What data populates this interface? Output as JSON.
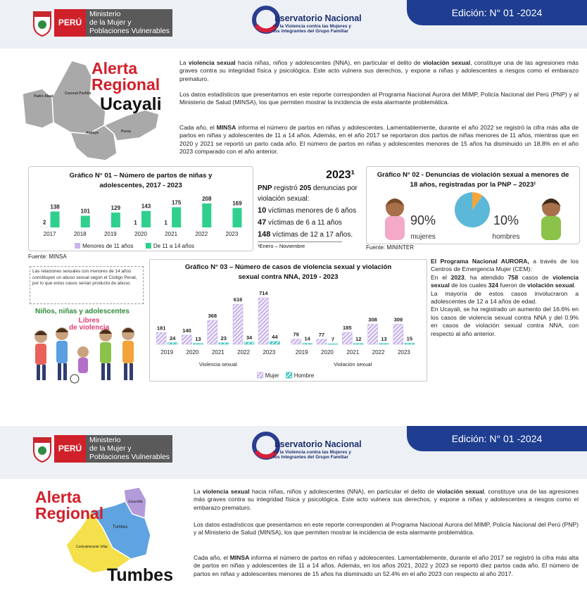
{
  "page1": {
    "header": {
      "badge": "PERÚ",
      "ministry": [
        "Ministerio",
        "de la Mujer y",
        "Poblaciones Vulnerables"
      ],
      "observatory": "bservatorio Nacional",
      "observatory_sub": [
        "de la Violencia contra las Mujeres y",
        "los Integrantes del Grupo Familiar"
      ],
      "edition": "Edición: N° 01 -2024"
    },
    "map": {
      "title": [
        "Alerta",
        "Regional"
      ],
      "region": "Ucayali",
      "provinces": [
        "Padre Abad",
        "Coronel Portillo",
        "Atalaya",
        "Purus"
      ]
    },
    "intro": [
      [
        "La ",
        "violencia sexual",
        " hacia niñas, niños y adolescentes (NNA), en particular el delito de ",
        "violación sexual",
        ", constituye una de las agresiones más graves contra su integridad física y psicológica. Este acto vulnera sus derechos, y expone a niñas y adolescentes a riesgos como el embarazo prematuro."
      ],
      [
        "Los datos estadísticos que presentamos en este reporte corresponden al Programa Nacional Aurora del MIMP, Policía Nacional del Perú (PNP) y al Ministerio de Salud (MINSA), los que permiten mostrar la incidencia de esta alarmante problemática."
      ],
      [
        "Cada año, el ",
        "MINSA",
        " informa el número de partos en niñas y adolescentes. Lamentablemente, durante el año 2022 se registró la cifra más alta de partos en niñas y adolescentes de 11 a 14 años. Además, en el año 2017 se reportaron dos partos de niñas menores de 11 años, mientras que en 2020 y 2021 se reportó un parto cada año. El número de partos en niñas y adolescentes menores de 15 años ha disminuido un 18.8% en el año 2023 comparado con el año anterior."
      ]
    ],
    "chart1": {
      "type": "bar",
      "title": "Gráfico N° 01 – Número de partos de niñas y adolescentes, 2017 - 2023",
      "categories": [
        "2017",
        "2018",
        "2019",
        "2020",
        "2021",
        "2022",
        "2023"
      ],
      "series": [
        {
          "name": "Menores de 11 años",
          "color": "#c8b4ea",
          "values": [
            2,
            null,
            null,
            1,
            1,
            null,
            null
          ]
        },
        {
          "name": "De 11 a 14 años",
          "color": "#2fcf8e",
          "values": [
            138,
            101,
            129,
            143,
            175,
            208,
            169
          ]
        }
      ],
      "source": "Fuente: MINSA"
    },
    "pnp": {
      "heading": "2023¹",
      "name": "PNP",
      "text": [
        " registró ",
        " denuncias por violación sexual:"
      ],
      "total": "205",
      "items": [
        {
          "count": "10",
          "label": "víctimas menores de 6 años"
        },
        {
          "count": "47",
          "label": "víctimas de 6 a 11 años"
        },
        {
          "count": "148",
          "label": "víctimas de 12 a 17 años."
        }
      ],
      "footnote": "¹Enero – Noviembre"
    },
    "chart2": {
      "type": "pie",
      "title": "Gráfico N° 02 - Denuncias de violación sexual a menores de 18 años, registradas por la PNP – 2023¹",
      "categories": [
        "mujeres",
        "hombres"
      ],
      "values": [
        90,
        10
      ],
      "value_labels": [
        "90%",
        "10%"
      ],
      "colors": [
        "#5cb8d8",
        "#f7a53a"
      ],
      "source": "Fuente: MININTER"
    },
    "note": "Las relaciones sexuales con menores de 14 años constituyen un abuso sexual según el Código Penal, por lo que estos casos serían producto de abuso.",
    "illustration": {
      "title": "Niños, niñas y adolescentes",
      "banner": [
        "Libres",
        "de violencia"
      ]
    },
    "chart3": {
      "type": "bar",
      "title": "Gráfico N° 03 – Número de casos de violencia sexual y violación sexual contra NNA, 2019 - 2023",
      "groups": [
        "Violencia sexual",
        "Violación sexual"
      ],
      "categories": [
        "2019",
        "2020",
        "2021",
        "2022",
        "2023",
        "2019",
        "2020",
        "2021",
        "2022",
        "2023"
      ],
      "hatch": true,
      "series": [
        {
          "name": "Mujer",
          "color": "#c8b4ea",
          "values": [
            181,
            140,
            368,
            616,
            714,
            79,
            77,
            185,
            308,
            309
          ]
        },
        {
          "name": "Hombre",
          "color": "#3fc6c0",
          "values": [
            24,
            13,
            23,
            34,
            44,
            14,
            7,
            12,
            13,
            15
          ]
        }
      ]
    },
    "aurora": {
      "title": "El Programa Nacional AURORA,",
      "intro": "a través de los Centros de Emergencia Mujer (CEM):",
      "paragraphs": [
        [
          "En el ",
          "2023",
          ", ha atendido ",
          "758",
          " casos de ",
          "violencia sexual",
          " de los cuales ",
          "324",
          " fueron de ",
          "violación sexual",
          "."
        ],
        [
          "La mayoría de estos casos involucraron a adolescentes de 12 a 14 años de edad."
        ],
        [
          "En Ucayali, se ha registrado un aumento del 16.6% en los casos de violencia sexual contra NNA y del 0.9% en casos de violación sexual contra NNA, con respecto al año anterior."
        ]
      ]
    }
  },
  "page2": {
    "header": {
      "badge": "PERÚ",
      "ministry": [
        "Ministerio",
        "de la Mujer y",
        "Poblaciones Vulnerables"
      ],
      "observatory": "bservatorio Nacional",
      "observatory_sub": [
        "de la Violencia contra las Mujeres y",
        "los Integrantes del Grupo Familiar"
      ],
      "edition": "Edición: N° 01 -2024"
    },
    "map": {
      "title": [
        "Alerta",
        "Regional"
      ],
      "region": "Tumbes",
      "provinces": [
        "Zarumilla",
        "Tumbes",
        "Contralmirante Villar"
      ]
    },
    "intro": [
      [
        "La ",
        "violencia sexual",
        " hacia niñas, niños y adolescentes (NNA), en particular el delito de ",
        "violación sexual",
        ", constituye una de las agresiones más graves contra su integridad física y psicológica. Este acto vulnera sus derechos, y expone a niñas y adolescentes a riesgos como el embarazo prematuro."
      ],
      [
        "Los datos estadísticos que presentamos en este reporte corresponden al Programa Nacional Aurora del MIMP, Policía Nacional del Perú (PNP) y al Ministerio de Salud (MINSA), los que permiten mostrar la incidencia de esta alarmante problemática."
      ],
      [
        "Cada año, el ",
        "MINSA",
        " informa el número de partos en niñas y adolescentes. Lamentablemente, durante el año 2017 se registró la cifra más alta de partos en niñas y adolescentes de 11 a 14 años. Además, en los años 2021, 2022 y 2023 se reportó diez partos cada año. El número de partos en niñas y adolescentes menores de 15 años ha disminuido un 52.4% en el año 2023 con respecto al año 2017."
      ]
    ]
  }
}
